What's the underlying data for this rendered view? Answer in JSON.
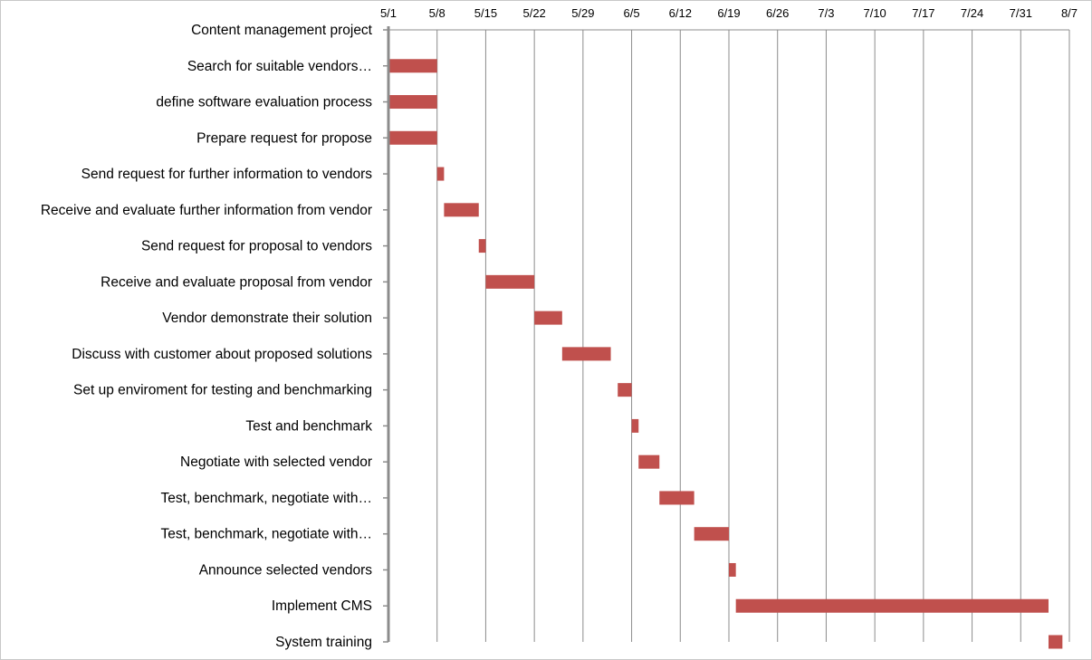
{
  "chart_data": {
    "type": "bar",
    "orientation": "horizontal",
    "subtype": "gantt",
    "title": "",
    "xlabel": "",
    "ylabel": "",
    "x_ticks": [
      "5/1",
      "5/8",
      "5/15",
      "5/22",
      "5/29",
      "6/5",
      "6/12",
      "6/19",
      "6/26",
      "7/3",
      "7/10",
      "7/17",
      "7/24",
      "7/31",
      "8/7"
    ],
    "x_range": [
      "5/1",
      "8/7"
    ],
    "grid": "vertical",
    "bar_color": "#c0504d",
    "tasks": [
      {
        "name": "Content management project",
        "start": null,
        "end": null
      },
      {
        "name": "Search for suitable vendors…",
        "start": "5/1",
        "end": "5/8"
      },
      {
        "name": "define software evaluation process",
        "start": "5/1",
        "end": "5/8"
      },
      {
        "name": "Prepare request for propose",
        "start": "5/1",
        "end": "5/8"
      },
      {
        "name": "Send request for further information to vendors",
        "start": "5/8",
        "end": "5/9"
      },
      {
        "name": "Receive and evaluate further information from vendor",
        "start": "5/9",
        "end": "5/14"
      },
      {
        "name": "Send request for proposal to vendors",
        "start": "5/14",
        "end": "5/15"
      },
      {
        "name": "Receive and evaluate proposal from vendor",
        "start": "5/15",
        "end": "5/22"
      },
      {
        "name": "Vendor demonstrate their solution",
        "start": "5/22",
        "end": "5/26"
      },
      {
        "name": "Discuss with customer about proposed solutions",
        "start": "5/26",
        "end": "6/2"
      },
      {
        "name": "Set up enviroment for testing and benchmarking",
        "start": "6/3",
        "end": "6/5"
      },
      {
        "name": "Test and benchmark",
        "start": "6/5",
        "end": "6/6"
      },
      {
        "name": "Negotiate with selected vendor",
        "start": "6/6",
        "end": "6/9"
      },
      {
        "name": "Test, benchmark, negotiate with…",
        "start": "6/9",
        "end": "6/14"
      },
      {
        "name": "Test, benchmark, negotiate with…",
        "start": "6/14",
        "end": "6/19"
      },
      {
        "name": "Announce selected vendors",
        "start": "6/19",
        "end": "6/20"
      },
      {
        "name": "Implement CMS",
        "start": "6/20",
        "end": "8/4"
      },
      {
        "name": "System training",
        "start": "8/4",
        "end": "8/6"
      }
    ]
  }
}
